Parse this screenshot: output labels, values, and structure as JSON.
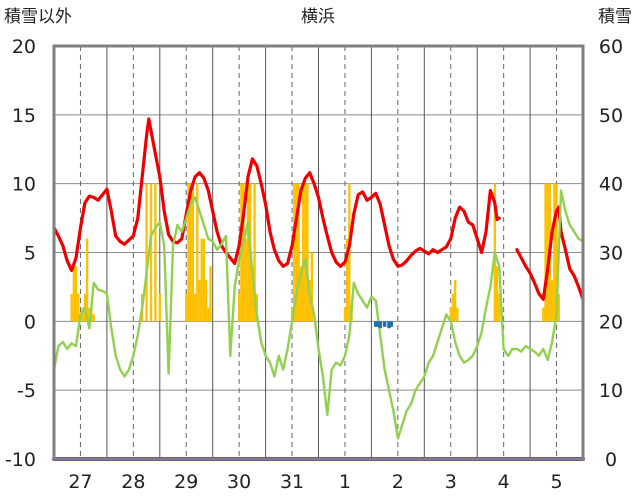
{
  "chart_data": {
    "type": "line",
    "title": "横浜",
    "left_axis_label": "積雪以外",
    "right_axis_label": "積雪",
    "ylim_left": [
      -10,
      20
    ],
    "ylim_right": [
      0,
      60
    ],
    "left_ticks": [
      "20",
      "15",
      "10",
      "5",
      "0",
      "-5",
      "-10"
    ],
    "right_ticks": [
      "60",
      "50",
      "40",
      "30",
      "20",
      "10",
      "0"
    ],
    "categories": [
      "27",
      "28",
      "29",
      "30",
      "31",
      "1",
      "2",
      "3",
      "4",
      "5"
    ],
    "x_unit": "hours since start of day 27",
    "x_range": [
      0,
      240
    ],
    "grid": true,
    "colors": {
      "temperature": "#ee0000",
      "dewpoint": "#92d050",
      "precipitation": "#ffc000",
      "snow_depth": "#7030a0",
      "marker": "#1f6fb2",
      "frame": "#7f7f7f"
    },
    "series": [
      {
        "role": "temperature",
        "axis": "left",
        "points": [
          [
            0,
            6.8
          ],
          [
            2,
            6.2
          ],
          [
            4,
            5.5
          ],
          [
            6,
            4.4
          ],
          [
            8,
            3.7
          ],
          [
            10,
            4.6
          ],
          [
            12,
            6.8
          ],
          [
            14,
            8.6
          ],
          [
            16,
            9.1
          ],
          [
            18,
            9.0
          ],
          [
            20,
            8.8
          ],
          [
            22,
            9.2
          ],
          [
            24,
            9.6
          ],
          [
            26,
            8.0
          ],
          [
            28,
            6.2
          ],
          [
            30,
            5.8
          ],
          [
            32,
            5.6
          ],
          [
            34,
            5.9
          ],
          [
            36,
            6.2
          ],
          [
            38,
            7.5
          ],
          [
            40,
            10.5
          ],
          [
            42,
            13.5
          ],
          [
            43,
            14.7
          ],
          [
            45,
            13.0
          ],
          [
            48,
            10.5
          ],
          [
            50,
            8.0
          ],
          [
            52,
            6.3
          ],
          [
            54,
            5.8
          ],
          [
            56,
            5.7
          ],
          [
            58,
            6.0
          ],
          [
            60,
            7.8
          ],
          [
            62,
            9.5
          ],
          [
            64,
            10.5
          ],
          [
            66,
            10.8
          ],
          [
            68,
            10.4
          ],
          [
            70,
            9.5
          ],
          [
            72,
            8.0
          ],
          [
            74,
            6.5
          ],
          [
            76,
            5.5
          ],
          [
            78,
            5.0
          ],
          [
            80,
            4.6
          ],
          [
            82,
            4.2
          ],
          [
            84,
            5.5
          ],
          [
            86,
            7.8
          ],
          [
            88,
            10.5
          ],
          [
            90,
            11.8
          ],
          [
            92,
            11.3
          ],
          [
            94,
            10.0
          ],
          [
            96,
            8.5
          ],
          [
            98,
            6.5
          ],
          [
            100,
            5.2
          ],
          [
            102,
            4.4
          ],
          [
            104,
            4.0
          ],
          [
            106,
            4.2
          ],
          [
            108,
            5.5
          ],
          [
            110,
            7.5
          ],
          [
            112,
            9.5
          ],
          [
            114,
            10.4
          ],
          [
            116,
            10.8
          ],
          [
            118,
            10.0
          ],
          [
            120,
            9.0
          ],
          [
            122,
            7.5
          ],
          [
            124,
            6.2
          ],
          [
            126,
            5.0
          ],
          [
            128,
            4.3
          ],
          [
            130,
            4.0
          ],
          [
            132,
            4.3
          ],
          [
            134,
            5.5
          ],
          [
            136,
            7.8
          ],
          [
            138,
            9.2
          ],
          [
            140,
            9.4
          ],
          [
            142,
            8.8
          ],
          [
            144,
            9.0
          ],
          [
            146,
            9.3
          ],
          [
            148,
            8.5
          ],
          [
            150,
            7.0
          ],
          [
            152,
            5.5
          ],
          [
            154,
            4.5
          ],
          [
            156,
            4.0
          ],
          [
            158,
            4.1
          ],
          [
            160,
            4.4
          ],
          [
            162,
            4.8
          ],
          [
            164,
            5.1
          ],
          [
            166,
            5.3
          ],
          [
            168,
            5.1
          ],
          [
            170,
            4.9
          ],
          [
            172,
            5.2
          ],
          [
            174,
            5.0
          ],
          [
            176,
            5.2
          ],
          [
            178,
            5.4
          ],
          [
            180,
            6.0
          ],
          [
            182,
            7.5
          ],
          [
            184,
            8.3
          ],
          [
            186,
            8.0
          ],
          [
            188,
            7.2
          ],
          [
            190,
            7.0
          ],
          [
            192,
            6.0
          ],
          [
            194,
            5.0
          ],
          [
            196,
            6.5
          ],
          [
            198,
            9.5
          ],
          [
            200,
            8.6
          ],
          [
            201,
            7.4
          ],
          [
            202,
            7.5
          ]
        ]
      },
      {
        "role": "temperature",
        "axis": "left",
        "points": [
          [
            210,
            5.2
          ],
          [
            212,
            4.6
          ],
          [
            214,
            4.0
          ],
          [
            216,
            3.5
          ],
          [
            218,
            2.8
          ],
          [
            220,
            2.0
          ],
          [
            222,
            1.6
          ],
          [
            224,
            3.8
          ],
          [
            226,
            6.5
          ],
          [
            228,
            8.0
          ],
          [
            229,
            8.3
          ],
          [
            230,
            6.5
          ],
          [
            232,
            5.2
          ],
          [
            234,
            3.8
          ],
          [
            236,
            3.3
          ],
          [
            238,
            2.5
          ],
          [
            240,
            1.6
          ]
        ]
      },
      {
        "role": "dewpoint",
        "axis": "left",
        "points": [
          [
            0,
            -3.5
          ],
          [
            2,
            -1.8
          ],
          [
            4,
            -1.5
          ],
          [
            6,
            -2.0
          ],
          [
            8,
            -1.6
          ],
          [
            10,
            -1.8
          ],
          [
            12,
            0.5
          ],
          [
            14,
            1.0
          ],
          [
            16,
            -0.5
          ],
          [
            18,
            2.8
          ],
          [
            20,
            2.3
          ],
          [
            22,
            2.2
          ],
          [
            24,
            2.0
          ],
          [
            26,
            -0.5
          ],
          [
            28,
            -2.5
          ],
          [
            30,
            -3.5
          ],
          [
            32,
            -4.0
          ],
          [
            34,
            -3.5
          ],
          [
            36,
            -2.5
          ],
          [
            38,
            -1.0
          ],
          [
            40,
            1.0
          ],
          [
            42,
            3.5
          ],
          [
            44,
            6.2
          ],
          [
            46,
            6.8
          ],
          [
            48,
            7.2
          ],
          [
            50,
            5.5
          ],
          [
            52,
            -3.8
          ],
          [
            54,
            5.5
          ],
          [
            56,
            7.0
          ],
          [
            58,
            6.5
          ],
          [
            60,
            7.5
          ],
          [
            62,
            8.5
          ],
          [
            64,
            9.0
          ],
          [
            66,
            8.0
          ],
          [
            68,
            7.0
          ],
          [
            70,
            6.0
          ],
          [
            72,
            5.8
          ],
          [
            74,
            5.2
          ],
          [
            76,
            5.6
          ],
          [
            78,
            6.2
          ],
          [
            80,
            -2.5
          ],
          [
            82,
            2.5
          ],
          [
            84,
            4.5
          ],
          [
            86,
            5.8
          ],
          [
            88,
            7.2
          ],
          [
            90,
            3.5
          ],
          [
            92,
            0.5
          ],
          [
            94,
            -1.5
          ],
          [
            96,
            -2.5
          ],
          [
            98,
            -3.0
          ],
          [
            100,
            -4.0
          ],
          [
            102,
            -2.5
          ],
          [
            104,
            -3.5
          ],
          [
            106,
            -2.0
          ],
          [
            108,
            0.0
          ],
          [
            110,
            2.0
          ],
          [
            112,
            3.5
          ],
          [
            114,
            4.5
          ],
          [
            116,
            2.0
          ],
          [
            118,
            0.5
          ],
          [
            120,
            -2.0
          ],
          [
            122,
            -4.0
          ],
          [
            124,
            -6.8
          ],
          [
            126,
            -3.5
          ],
          [
            128,
            -3.0
          ],
          [
            130,
            -3.2
          ],
          [
            132,
            -2.5
          ],
          [
            134,
            -1.0
          ],
          [
            136,
            2.8
          ],
          [
            138,
            2.0
          ],
          [
            140,
            1.5
          ],
          [
            142,
            1.0
          ],
          [
            144,
            1.8
          ],
          [
            146,
            1.5
          ],
          [
            148,
            -1.0
          ],
          [
            150,
            -3.5
          ],
          [
            152,
            -5.0
          ],
          [
            154,
            -6.5
          ],
          [
            156,
            -8.5
          ],
          [
            158,
            -7.5
          ],
          [
            160,
            -6.5
          ],
          [
            162,
            -6.0
          ],
          [
            164,
            -5.0
          ],
          [
            166,
            -4.5
          ],
          [
            168,
            -4.0
          ],
          [
            170,
            -3.0
          ],
          [
            172,
            -2.5
          ],
          [
            174,
            -1.5
          ],
          [
            176,
            -0.5
          ],
          [
            178,
            0.5
          ],
          [
            180,
            0.0
          ],
          [
            182,
            -1.5
          ],
          [
            184,
            -2.5
          ],
          [
            186,
            -3.0
          ],
          [
            188,
            -2.8
          ],
          [
            190,
            -2.5
          ],
          [
            192,
            -1.8
          ],
          [
            194,
            -0.8
          ],
          [
            196,
            1.0
          ],
          [
            198,
            2.5
          ],
          [
            200,
            5.0
          ],
          [
            202,
            4.0
          ],
          [
            204,
            -2.0
          ],
          [
            206,
            -2.5
          ],
          [
            208,
            -2.0
          ],
          [
            210,
            -2.0
          ],
          [
            212,
            -2.2
          ],
          [
            214,
            -1.8
          ],
          [
            216,
            -2.0
          ],
          [
            218,
            -2.2
          ],
          [
            220,
            -2.5
          ],
          [
            222,
            -2.0
          ],
          [
            224,
            -2.8
          ],
          [
            226,
            -1.5
          ],
          [
            228,
            0.5
          ],
          [
            230,
            9.5
          ],
          [
            232,
            8.0
          ],
          [
            234,
            7.0
          ],
          [
            236,
            6.5
          ],
          [
            238,
            6.0
          ],
          [
            240,
            5.8
          ]
        ]
      },
      {
        "role": "precipitation",
        "axis": "left",
        "bars": [
          [
            8,
            2
          ],
          [
            9,
            4
          ],
          [
            10,
            4
          ],
          [
            11,
            2
          ],
          [
            12,
            0.5
          ],
          [
            13,
            1
          ],
          [
            14,
            2
          ],
          [
            15,
            6
          ],
          [
            16,
            1
          ],
          [
            17,
            1
          ],
          [
            18,
            0.5
          ],
          [
            40,
            2
          ],
          [
            42,
            10
          ],
          [
            44,
            10
          ],
          [
            46,
            10
          ],
          [
            48,
            2
          ],
          [
            60,
            2
          ],
          [
            61,
            10
          ],
          [
            62,
            10
          ],
          [
            63,
            10
          ],
          [
            64,
            2
          ],
          [
            65,
            10
          ],
          [
            66,
            3
          ],
          [
            67,
            6
          ],
          [
            68,
            6
          ],
          [
            69,
            3
          ],
          [
            70,
            1
          ],
          [
            71,
            4
          ],
          [
            84,
            2
          ],
          [
            85,
            10
          ],
          [
            86,
            10
          ],
          [
            87,
            6
          ],
          [
            88,
            10
          ],
          [
            89,
            10
          ],
          [
            90,
            4
          ],
          [
            91,
            10
          ],
          [
            92,
            2
          ],
          [
            108,
            1
          ],
          [
            109,
            10
          ],
          [
            110,
            10
          ],
          [
            111,
            10
          ],
          [
            112,
            4
          ],
          [
            113,
            10
          ],
          [
            114,
            10
          ],
          [
            115,
            10
          ],
          [
            116,
            3
          ],
          [
            117,
            5
          ],
          [
            132,
            1
          ],
          [
            133,
            6
          ],
          [
            134,
            10
          ],
          [
            135,
            1
          ],
          [
            180,
            1
          ],
          [
            181,
            2
          ],
          [
            182,
            3
          ],
          [
            183,
            1
          ],
          [
            200,
            10
          ],
          [
            201,
            4
          ],
          [
            202,
            2
          ],
          [
            222,
            1
          ],
          [
            223,
            10
          ],
          [
            224,
            10
          ],
          [
            225,
            10
          ],
          [
            226,
            3
          ],
          [
            227,
            10
          ],
          [
            228,
            10
          ],
          [
            229,
            2
          ]
        ]
      },
      {
        "role": "snow_depth",
        "axis": "right",
        "points": [
          [
            0,
            0
          ],
          [
            240,
            0
          ]
        ]
      },
      {
        "role": "marker",
        "axis": "left",
        "bars": [
          [
            146,
            -0.4
          ],
          [
            147,
            -0.4
          ],
          [
            148,
            -0.5
          ],
          [
            150,
            -0.4
          ],
          [
            152,
            -0.5
          ],
          [
            153,
            -0.4
          ]
        ]
      }
    ]
  }
}
